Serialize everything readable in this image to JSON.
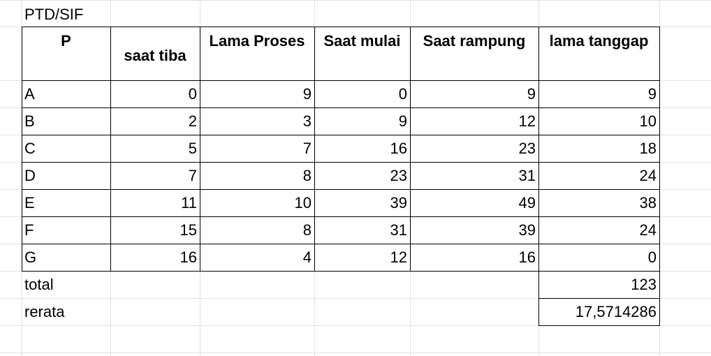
{
  "sheet": {
    "title": "PTD/SIF",
    "headers": {
      "p": "P",
      "arrival": "saat tiba",
      "burst": "Lama Proses",
      "start": "Saat mulai",
      "finish": "Saat rampung",
      "turnaround": "lama tanggap"
    },
    "rows": [
      {
        "p": "A",
        "arrival": "0",
        "burst": "9",
        "start": "0",
        "finish": "9",
        "turnaround": "9"
      },
      {
        "p": "B",
        "arrival": "2",
        "burst": "3",
        "start": "9",
        "finish": "12",
        "turnaround": "10"
      },
      {
        "p": "C",
        "arrival": "5",
        "burst": "7",
        "start": "16",
        "finish": "23",
        "turnaround": "18"
      },
      {
        "p": "D",
        "arrival": "7",
        "burst": "8",
        "start": "23",
        "finish": "31",
        "turnaround": "24"
      },
      {
        "p": "E",
        "arrival": "11",
        "burst": "10",
        "start": "39",
        "finish": "49",
        "turnaround": "38"
      },
      {
        "p": "F",
        "arrival": "15",
        "burst": "8",
        "start": "31",
        "finish": "39",
        "turnaround": "24"
      },
      {
        "p": "G",
        "arrival": "16",
        "burst": "4",
        "start": "12",
        "finish": "16",
        "turnaround": "0"
      }
    ],
    "total_label": "total",
    "total_value": "123",
    "average_label": "rerata",
    "average_value": "17,5714286"
  }
}
